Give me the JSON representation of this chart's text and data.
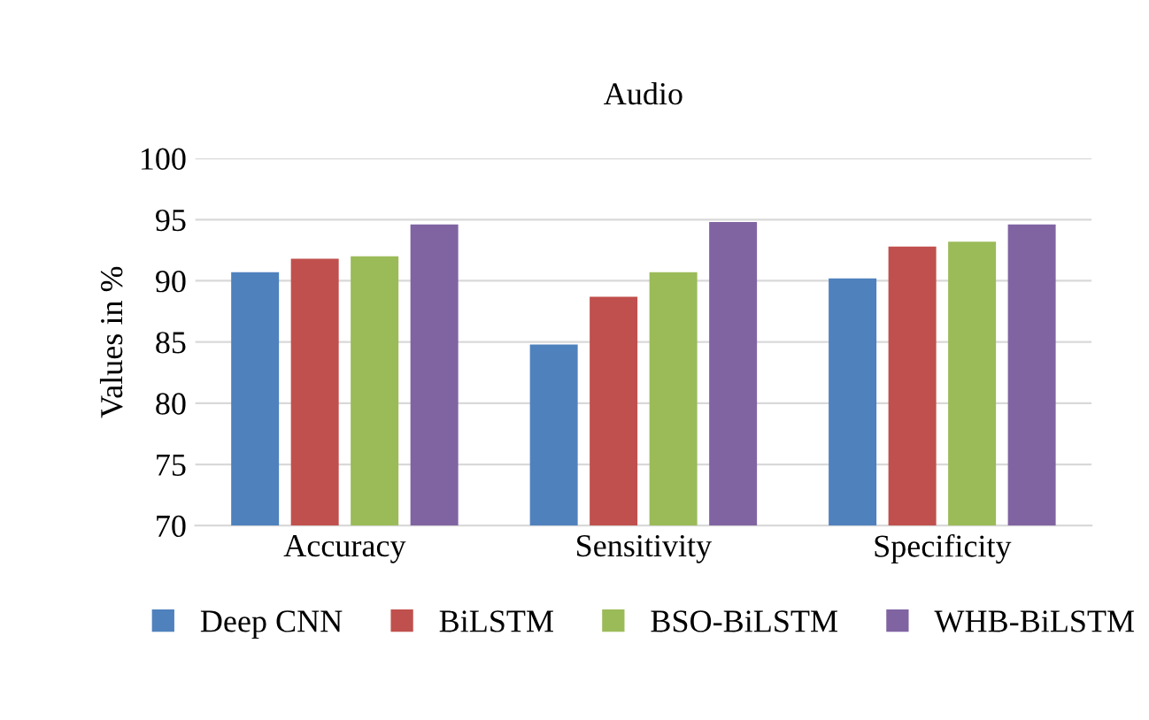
{
  "chart_data": {
    "type": "bar",
    "title": "Audio",
    "ylabel": "Values in %",
    "categories": [
      "Accuracy",
      "Sensitivity",
      "Specificity"
    ],
    "series": [
      {
        "name": "Deep CNN",
        "color": "#4f81bd",
        "values": [
          90.7,
          84.8,
          90.2
        ]
      },
      {
        "name": "BiLSTM",
        "color": "#c0504d",
        "values": [
          91.8,
          88.7,
          92.8
        ]
      },
      {
        "name": "BSO-BiLSTM",
        "color": "#9bbb59",
        "values": [
          92.0,
          90.7,
          93.2
        ]
      },
      {
        "name": "WHB-BiLSTM",
        "color": "#8064a2",
        "values": [
          94.6,
          94.8,
          94.6
        ]
      }
    ],
    "ylim": [
      70,
      100
    ],
    "yticks": [
      70,
      75,
      80,
      85,
      90,
      95,
      100
    ],
    "grid": "y",
    "legend": "bottom"
  }
}
